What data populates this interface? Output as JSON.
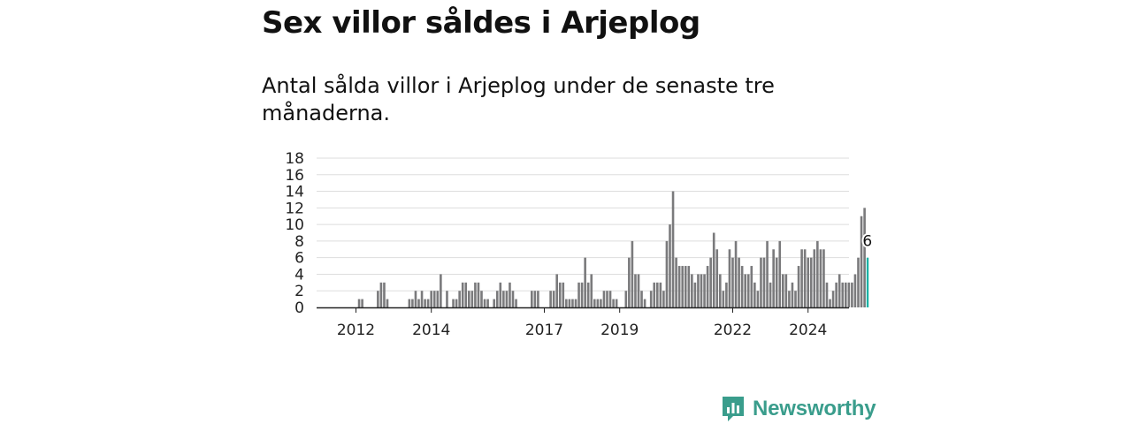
{
  "title": "Sex villor såldes i Arjeplog",
  "subtitle": "Antal sålda villor i Arjeplog under de senaste tre månaderna.",
  "brand": {
    "name": "Newsworthy",
    "icon": "newsworthy-logo-icon"
  },
  "colors": {
    "bar": "#7a7a7c",
    "highlight": "#1bb3a6",
    "grid": "#dddddd",
    "axis": "#222222",
    "brand": "#3a9d8c"
  },
  "chart_data": {
    "type": "bar",
    "title": "Sex villor såldes i Arjeplog",
    "subtitle": "Antal sålda villor i Arjeplog under de senaste tre månaderna.",
    "xlabel": "",
    "ylabel": "",
    "ylim": [
      0,
      18
    ],
    "y_ticks": [
      "0",
      "2",
      "4",
      "6",
      "8",
      "10",
      "12",
      "14",
      "16",
      "18"
    ],
    "x_tick_labels": [
      "2012",
      "2014",
      "2017",
      "2019",
      "2022",
      "2024"
    ],
    "x_tick_index": [
      4,
      28,
      64,
      88,
      124,
      148
    ],
    "grid": true,
    "highlight_label": "6",
    "start_month": "2011-09",
    "values": [
      0,
      0,
      0,
      0,
      0,
      1,
      1,
      0,
      0,
      0,
      0,
      2,
      3,
      3,
      1,
      0,
      0,
      0,
      0,
      0,
      0,
      1,
      1,
      2,
      1,
      2,
      1,
      1,
      2,
      2,
      2,
      4,
      0,
      2,
      0,
      1,
      1,
      2,
      3,
      3,
      2,
      2,
      3,
      3,
      2,
      1,
      1,
      0,
      1,
      2,
      3,
      2,
      2,
      3,
      2,
      1,
      0,
      0,
      0,
      0,
      2,
      2,
      2,
      0,
      0,
      0,
      2,
      2,
      4,
      3,
      3,
      1,
      1,
      1,
      1,
      3,
      3,
      6,
      3,
      4,
      1,
      1,
      1,
      2,
      2,
      2,
      1,
      1,
      0,
      0,
      2,
      6,
      8,
      4,
      4,
      2,
      1,
      0,
      2,
      3,
      3,
      3,
      2,
      8,
      10,
      14,
      6,
      5,
      5,
      5,
      5,
      4,
      3,
      4,
      4,
      4,
      5,
      6,
      9,
      7,
      4,
      2,
      3,
      7,
      6,
      8,
      6,
      5,
      4,
      4,
      5,
      3,
      2,
      6,
      6,
      8,
      3,
      7,
      6,
      8,
      4,
      4,
      2,
      3,
      2,
      5,
      7,
      7,
      6,
      6,
      7,
      8,
      7,
      7,
      3,
      1,
      2,
      3,
      4,
      3,
      3,
      3,
      3,
      4,
      6,
      11,
      12,
      6
    ]
  }
}
